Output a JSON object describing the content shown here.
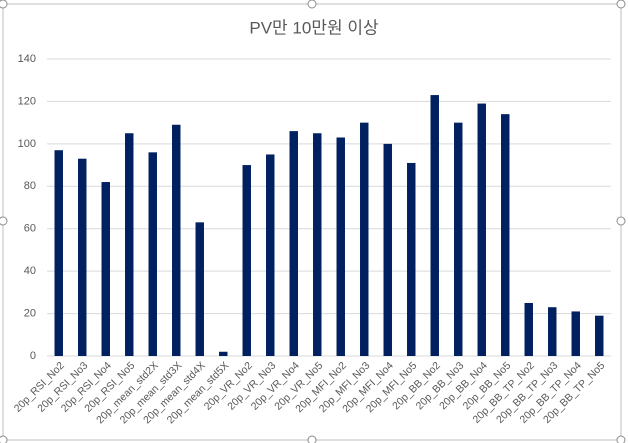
{
  "chart_data": {
    "type": "bar",
    "title": "PV만 10만원 이상",
    "categories": [
      "20p_RSI_No2",
      "20p_RSI_No3",
      "20p_RSI_No4",
      "20p_RSI_No5",
      "20p_mean_std2X",
      "20p_mean_std3X",
      "20p_mean_std4X",
      "20p_mean_std5X",
      "20p_VR_No2",
      "20p_VR_No3",
      "20p_VR_No4",
      "20p_VR_No5",
      "20p_MFI_No2",
      "20p_MFI_No3",
      "20p_MFI_No4",
      "20p_MFI_No5",
      "20p_BB_No2",
      "20p_BB_No3",
      "20p_BB_No4",
      "20p_BB_No5",
      "20p_BB_TP_No2",
      "20p_BB_TP_No3",
      "20p_BB_TP_No4",
      "20p_BB_TP_No5"
    ],
    "values": [
      97,
      93,
      82,
      105,
      96,
      109,
      63,
      2,
      90,
      95,
      106,
      105,
      103,
      110,
      100,
      91,
      123,
      110,
      119,
      114,
      25,
      23,
      21,
      19
    ],
    "color": "#002060",
    "ylim": [
      0,
      140
    ],
    "yticks": [
      0,
      20,
      40,
      60,
      80,
      100,
      120,
      140
    ],
    "grid": true
  }
}
